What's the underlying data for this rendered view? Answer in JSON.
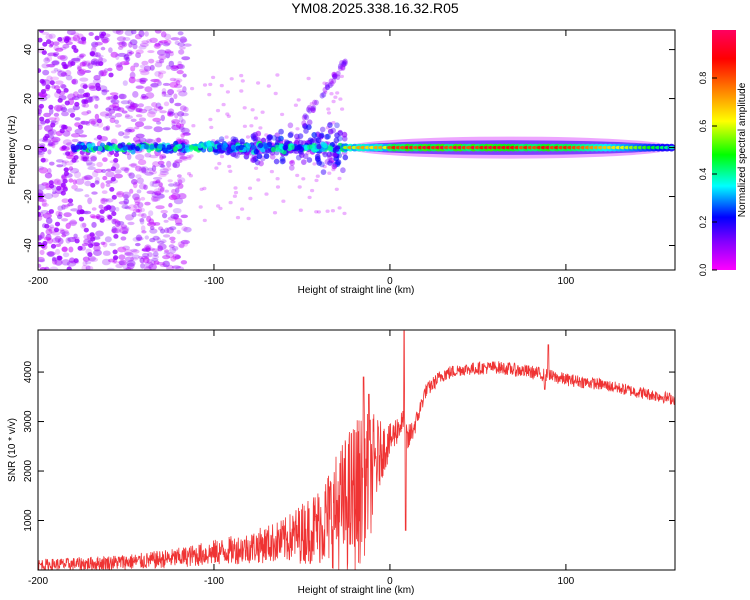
{
  "title": "YM08.2025.338.16.32.R05",
  "chart_data": [
    {
      "type": "heatmap",
      "name": "spectrogram",
      "xlabel": "Height of straight line (km)",
      "ylabel": "Frequency (Hz)",
      "xlim": [
        -200,
        162
      ],
      "ylim": [
        -50,
        48
      ],
      "xticks": [
        -200,
        -100,
        0,
        100
      ],
      "yticks": [
        -40,
        -20,
        0,
        20,
        40
      ],
      "colorbar": {
        "label": "Normalized spectral amplitude",
        "range": [
          0.0,
          1.0
        ],
        "ticks": [
          0.0,
          0.2,
          0.4,
          0.6,
          0.8
        ],
        "colormap": [
          "#ff00ff",
          "#8000ff",
          "#0000ff",
          "#00ffff",
          "#00ff00",
          "#ffff00",
          "#ff8000",
          "#ff0000",
          "#ff0060"
        ]
      },
      "features": {
        "signal_band_center_hz": 0,
        "signal_band_halfwidth_hz": 3,
        "strong_signal_range_km": [
          -25,
          162
        ],
        "scattered_noise_range_km": [
          -200,
          -120
        ],
        "fanning_range_km": [
          -100,
          -25
        ]
      }
    },
    {
      "type": "line",
      "name": "snr",
      "xlabel": "Height of straight line (km)",
      "ylabel": "SNR (10 * v/v)",
      "xlim": [
        -200,
        162
      ],
      "ylim": [
        0,
        4850
      ],
      "xticks": [
        -200,
        -100,
        0,
        100
      ],
      "yticks": [
        1000,
        2000,
        3000,
        4000
      ],
      "color": "#ef3333",
      "envelope": {
        "x": [
          -200,
          -170,
          -140,
          -120,
          -100,
          -80,
          -60,
          -40,
          -30,
          -20,
          -15,
          -10,
          -5,
          0,
          5,
          8,
          10,
          15,
          20,
          30,
          40,
          60,
          80,
          100,
          120,
          140,
          162
        ],
        "base": [
          100,
          130,
          180,
          250,
          350,
          450,
          600,
          900,
          1200,
          1500,
          1700,
          2000,
          2400,
          2600,
          2900,
          3000,
          2600,
          3000,
          3600,
          3950,
          4050,
          4100,
          4000,
          3850,
          3750,
          3600,
          3450
        ],
        "noise": [
          120,
          140,
          170,
          200,
          260,
          320,
          450,
          800,
          1200,
          1600,
          1500,
          1200,
          600,
          350,
          300,
          250,
          300,
          200,
          150,
          150,
          130,
          130,
          140,
          130,
          120,
          120,
          120
        ]
      },
      "spikes": [
        {
          "x": -15,
          "y": 3900
        },
        {
          "x": -12,
          "y": 3550
        },
        {
          "x": 8,
          "y": 4830
        },
        {
          "x": 9,
          "y": 800
        },
        {
          "x": 90,
          "y": 4550
        },
        {
          "x": 88,
          "y": 3650
        }
      ]
    }
  ]
}
